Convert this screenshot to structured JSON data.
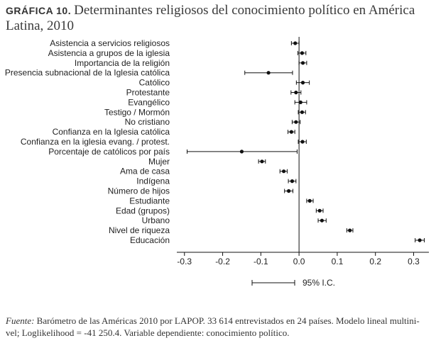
{
  "header": {
    "label": "GRÁFICA 10.",
    "title_line1": "Determinantes religiosos del conocimiento político en América",
    "title_line2": "Latina, 2010"
  },
  "footnote": {
    "lead": "Fuente:",
    "line1": " Barómetro de las Américas 2010 por LAPOP. 33 614 entrevistados en 24 países. Modelo lineal multini-",
    "line2": "vel; Loglikelihood = -41 250.4. Variable dependiente: conocimiento político."
  },
  "chart_data": {
    "type": "scatter",
    "orientation": "horizontal",
    "categories": [
      "Asistencia a servicios religiosos",
      "Asistencia a grupos de la iglesia",
      "Importancia de la religión",
      "Presencia subnacional de la Iglesia católica",
      "Católico",
      "Protestante",
      "Evangélico",
      "Testigo / Mormón",
      "No cristiano",
      "Confianza en la Iglesia católica",
      "Confianza en la iglesia evang. / protest.",
      "Porcentaje de católicos por país",
      "Mujer",
      "Ama de casa",
      "Indígena",
      "Número de hijos",
      "Estudiante",
      "Edad (grupos)",
      "Urbano",
      "Nivel de riqueza",
      "Educación"
    ],
    "estimates": [
      -0.01,
      0.008,
      0.01,
      -0.08,
      0.01,
      -0.008,
      0.004,
      0.008,
      -0.008,
      -0.02,
      0.009,
      -0.15,
      -0.097,
      -0.04,
      -0.018,
      -0.027,
      0.028,
      0.054,
      0.06,
      0.133,
      0.316
    ],
    "ci_low": [
      -0.02,
      -0.003,
      0.0,
      -0.142,
      -0.007,
      -0.021,
      -0.011,
      -0.002,
      -0.018,
      -0.029,
      -0.002,
      -0.293,
      -0.106,
      -0.05,
      -0.028,
      -0.038,
      0.02,
      0.045,
      0.05,
      0.125,
      0.304
    ],
    "ci_high": [
      0.0,
      0.018,
      0.02,
      -0.017,
      0.027,
      0.005,
      0.02,
      0.017,
      0.003,
      -0.011,
      0.019,
      -0.005,
      -0.088,
      -0.031,
      -0.008,
      -0.016,
      0.037,
      0.063,
      0.071,
      0.141,
      0.328
    ],
    "xlim": [
      -0.32,
      0.34
    ],
    "xticks": [
      -0.3,
      -0.2,
      -0.1,
      0.0,
      0.1,
      0.2,
      0.3
    ],
    "xtick_labels": [
      "-0.3",
      "-0.2",
      "-0.1",
      "0.0",
      "0.1",
      "0.2",
      "0.3"
    ],
    "reference_line": 0,
    "legend": {
      "label": "95% I.C.",
      "placement": "bottom"
    },
    "grid": false,
    "title": "",
    "xlabel": "",
    "ylabel": ""
  }
}
